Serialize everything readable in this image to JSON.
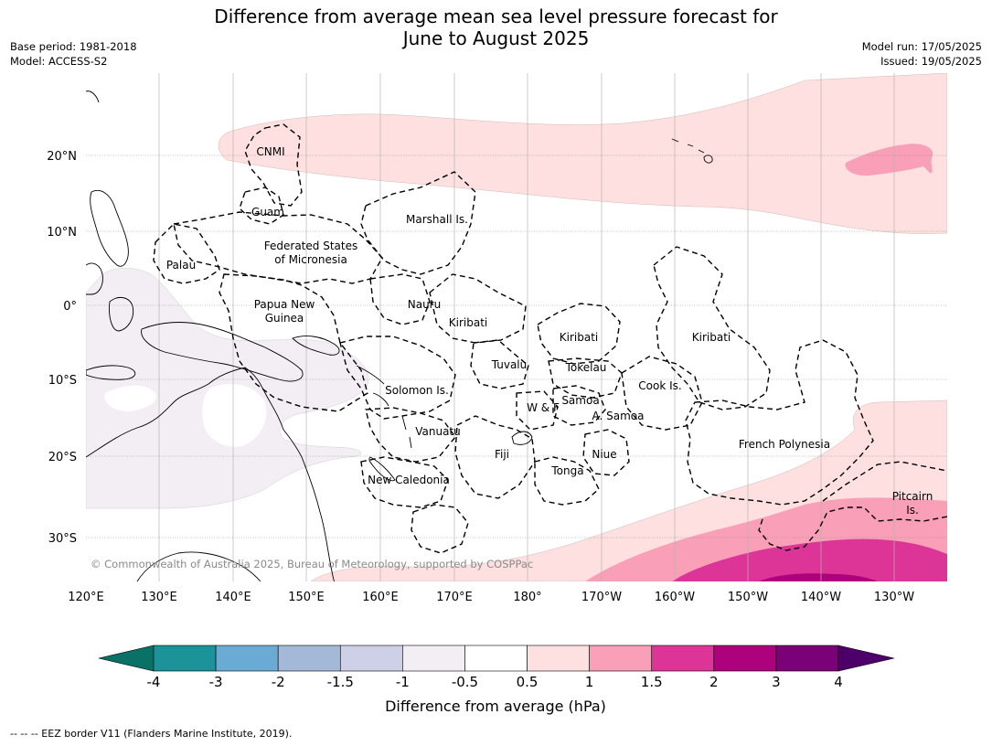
{
  "title_line1": "Difference from average mean sea level pressure forecast for",
  "title_line2": "June to August 2025",
  "meta_left": {
    "base_period": "Base period: 1981-2018",
    "model": "Model: ACCESS-S2"
  },
  "meta_right": {
    "model_run": "Model run: 17/05/2025",
    "issued": "Issued: 19/05/2025"
  },
  "lon_ticks": [
    "120°E",
    "130°E",
    "140°E",
    "150°E",
    "160°E",
    "170°E",
    "180°",
    "170°W",
    "160°W",
    "150°W",
    "140°W",
    "130°W"
  ],
  "lat_ticks": [
    "20°N",
    "10°N",
    "0°",
    "10°S",
    "20°S",
    "30°S"
  ],
  "regions": {
    "cnmi": "CNMI",
    "guam": "Guam",
    "marshall": "Marshall Is.",
    "fsm_1": "Federated States",
    "fsm_2": "of Micronesia",
    "palau": "Palau",
    "png_1": "Papua New",
    "png_2": "Guinea",
    "nauru": "Nauru",
    "kiribati_w": "Kiribati",
    "kiribati_c": "Kiribati",
    "kiribati_e": "Kiribati",
    "tuvalu": "Tuvalu",
    "tokelau": "Tokelau",
    "solomon": "Solomon Is.",
    "samoa": "Samoa",
    "wf": "W & F",
    "asamoa": "A. Samoa",
    "cook": "Cook Is.",
    "vanuatu": "Vanuatu",
    "fiji": "Fiji",
    "niue": "Niue",
    "tonga": "Tonga",
    "newcal": "New Caledonia",
    "frpoly": "French Polynesia",
    "pitcairn_1": "Pitcairn",
    "pitcairn_2": "Is."
  },
  "copyright": "© Commonwealth of Australia 2025, Bureau of Meteorology, supported by COSPPac",
  "colorbar": {
    "title": "Difference from average (hPa)",
    "ticks": [
      "-4",
      "-3",
      "-2",
      "-1.5",
      "-1",
      "-0.5",
      "0.5",
      "1",
      "1.5",
      "2",
      "3",
      "4"
    ],
    "colors": [
      "#0a7166",
      "#1b9399",
      "#69abd4",
      "#a4b8d8",
      "#cdd0e6",
      "#f3eef4",
      "#ffffff",
      "#fde0df",
      "#f99fb7",
      "#dd3497",
      "#ae017e",
      "#7a0177",
      "#4d006a"
    ]
  },
  "footnote": "-- -- -- EEZ border V11 (Flanders Marine Institute, 2019)."
}
